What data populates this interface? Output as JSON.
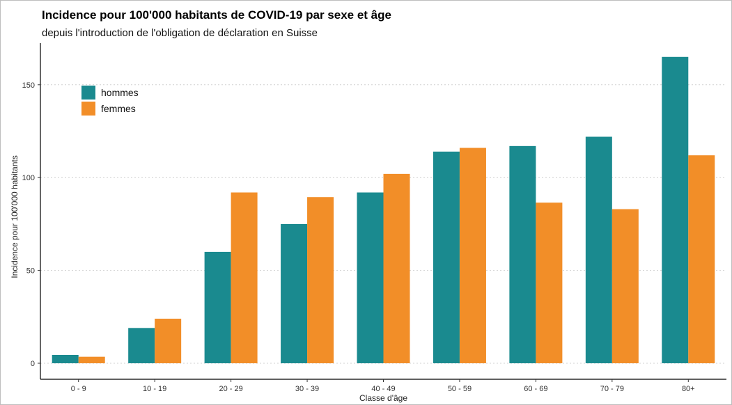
{
  "chart_data": {
    "type": "bar",
    "title": "Incidence pour 100'000 habitants de COVID-19 par sexe et âge",
    "subtitle": "depuis l'introduction de l'obligation de déclaration en Suisse",
    "xlabel": "Classe d'âge",
    "ylabel": "Incidence pour 100'000 habitants",
    "categories": [
      "0 - 9",
      "10 - 19",
      "20 - 29",
      "30 - 39",
      "40 - 49",
      "50 - 59",
      "60 - 69",
      "70 - 79",
      "80+"
    ],
    "series": [
      {
        "name": "hommes",
        "color": "#1a8a8f",
        "values": [
          4.5,
          19,
          60,
          75,
          92,
          114,
          117,
          122,
          165
        ]
      },
      {
        "name": "femmes",
        "color": "#f28e28",
        "values": [
          3.5,
          24,
          92,
          89.5,
          102,
          116,
          86.5,
          83,
          112
        ]
      }
    ],
    "yticks": [
      0,
      50,
      100,
      150
    ],
    "ylim": [
      0,
      172
    ],
    "grid": "horizontal-dotted",
    "legend_position": "top-left"
  }
}
